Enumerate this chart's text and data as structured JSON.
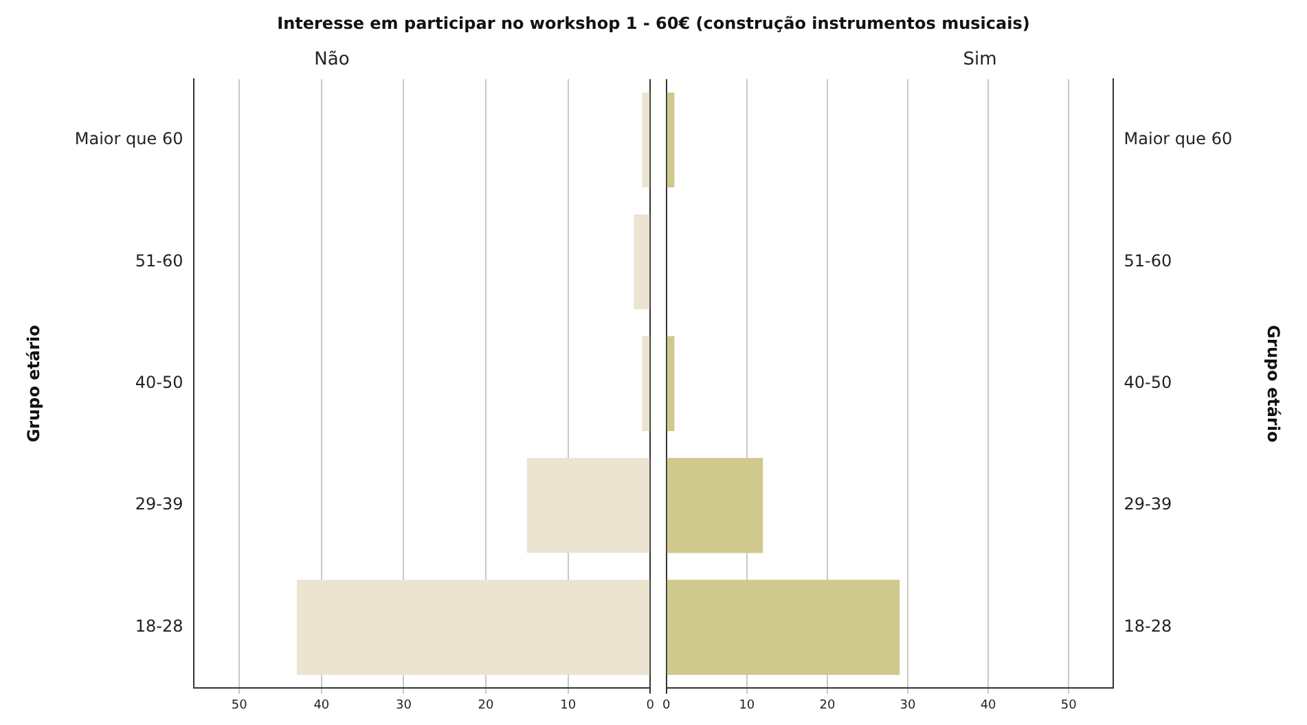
{
  "chart_data": [
    {
      "type": "bar",
      "title": "Interesse em participar no workshop 1 - 60€ (construção instrumentos musicais)",
      "subtitle": "Não",
      "orientation": "horizontal",
      "categories": [
        "Maior que 60",
        "51-60",
        "40-50",
        "29-39",
        "18-28"
      ],
      "ylabel": "Grupo etário",
      "series": [
        {
          "color": "#ebe4d0",
          "values": [
            1,
            2,
            1,
            15,
            43
          ]
        }
      ],
      "xlim": [
        55.5,
        0
      ],
      "xticks": [
        50,
        40,
        30,
        20,
        10,
        0
      ],
      "grid": "x",
      "legend": false
    },
    {
      "type": "bar",
      "subtitle": "Sim",
      "orientation": "horizontal",
      "categories": [
        "Maior que 60",
        "51-60",
        "40-50",
        "29-39",
        "18-28"
      ],
      "ylabel": "Grupo etário",
      "series": [
        {
          "color": "#d0c98e",
          "values": [
            1,
            0,
            1,
            12,
            29
          ]
        }
      ],
      "xlim": [
        0,
        55.5
      ],
      "xticks": [
        0,
        10,
        20,
        30,
        40,
        50
      ],
      "grid": "x",
      "legend": false
    }
  ]
}
